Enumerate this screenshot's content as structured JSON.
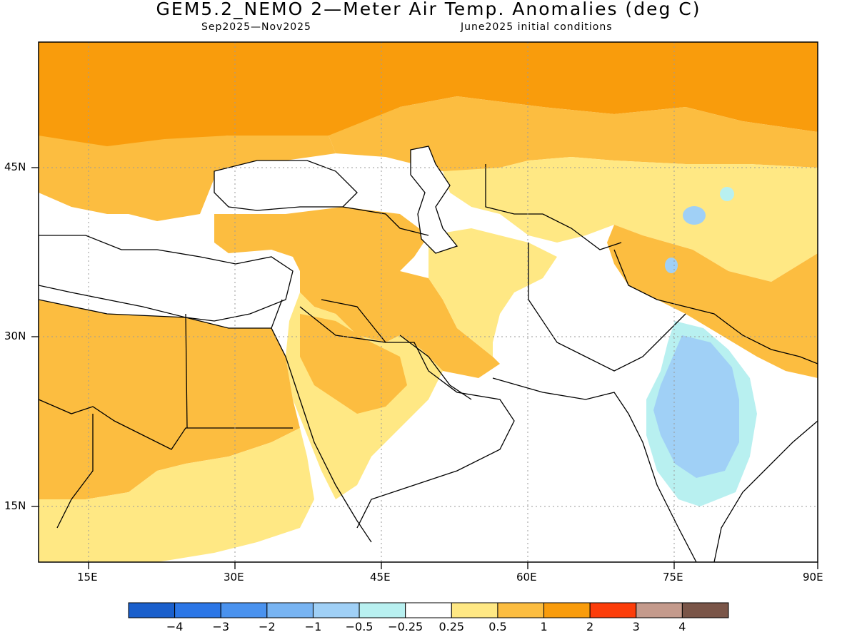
{
  "title": "GEM5.2_NEMO 2—Meter Air Temp. Anomalies (deg C)",
  "subtitle_left": "Sep2025—Nov2025",
  "subtitle_right": "June2025 initial conditions",
  "lat_labels": [
    "45N",
    "30N",
    "15N"
  ],
  "lon_labels": [
    "15E",
    "30E",
    "45E",
    "60E",
    "75E",
    "90E"
  ],
  "colorbar": {
    "colors": [
      "#1a5fcc",
      "#2b76e6",
      "#4a92ee",
      "#78b4f2",
      "#a0d0f6",
      "#b8f0f0",
      "#ffffff",
      "#ffe884",
      "#fcbd40",
      "#f99c0c",
      "#fc3d0a",
      "#c49a8c",
      "#7a5548"
    ],
    "labels": [
      "−4",
      "−3",
      "−2",
      "−1",
      "−0.5",
      "−0.25",
      "0.25",
      "0.5",
      "1",
      "2",
      "3",
      "4"
    ]
  },
  "legend_colors": {
    "orange_strong": "#f99c0c",
    "orange": "#fcbd40",
    "yellow": "#ffe884",
    "light_cyan": "#b8f0f0",
    "light_blue": "#a0d0f6",
    "blue": "#78b4f2"
  }
}
